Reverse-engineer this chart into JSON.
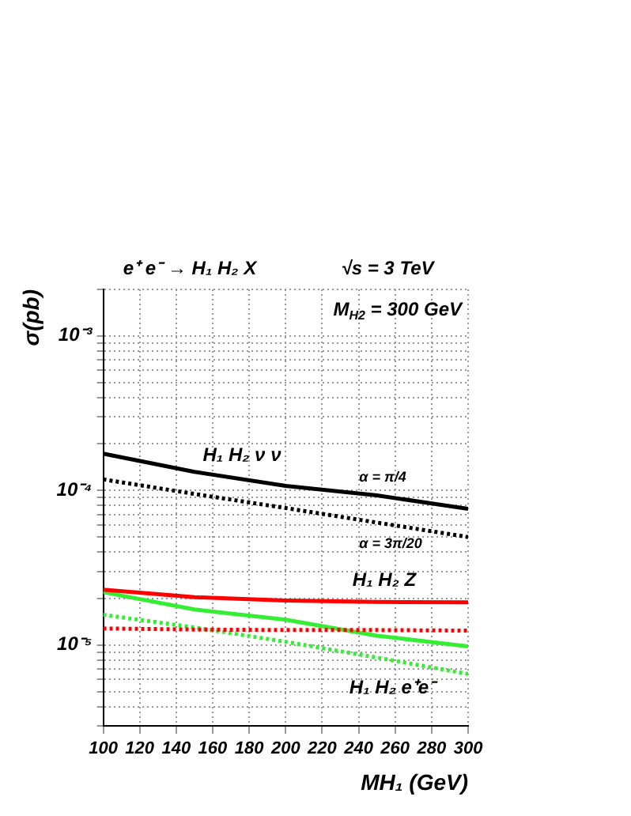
{
  "chart_data": {
    "type": "line",
    "title": "e⁺ e⁻ → H₁ H₂ X",
    "subtitle": "√s = 3 TeV",
    "xlabel": "MH₁ (GeV)",
    "ylabel": "σ(pb)",
    "x": [
      100,
      150,
      200,
      250,
      300
    ],
    "series": [
      {
        "color": "#000000",
        "line_style": "solid",
        "values": [
          0.000173,
          0.000132,
          0.000107,
          9.3e-05,
          7.6e-05
        ]
      },
      {
        "color": "#000000",
        "line_style": "dotted",
        "values": [
          0.000118,
          9.5e-05,
          7.7e-05,
          6.2e-05,
          5e-05
        ]
      },
      {
        "color": "#ff0000",
        "line_style": "solid",
        "values": [
          2.28e-05,
          2.04e-05,
          1.94e-05,
          1.9e-05,
          1.89e-05
        ]
      },
      {
        "color": "#ff0000",
        "line_style": "dotted",
        "values": [
          1.28e-05,
          1.26e-05,
          1.25e-05,
          1.25e-05,
          1.24e-05
        ]
      },
      {
        "color": "#33ee33",
        "line_style": "solid",
        "values": [
          2.2e-05,
          1.7e-05,
          1.46e-05,
          1.15e-05,
          9.8e-06
        ]
      },
      {
        "color": "#33ee33",
        "line_style": "dotted",
        "values": [
          1.57e-05,
          1.3e-05,
          1.05e-05,
          8.3e-06,
          6.5e-06
        ]
      }
    ],
    "xlim": [
      100,
      300
    ],
    "xticks": [
      100,
      120,
      140,
      160,
      180,
      200,
      220,
      240,
      260,
      280,
      300
    ],
    "ylim": [
      3e-06,
      0.002
    ],
    "log": "y",
    "yticks": [
      {
        "value": 3e-06,
        "label": null
      },
      {
        "value": 4e-06,
        "label": null
      },
      {
        "value": 5e-06,
        "label": null
      },
      {
        "value": 6e-06,
        "label": null
      },
      {
        "value": 7e-06,
        "label": null
      },
      {
        "value": 8e-06,
        "label": null
      },
      {
        "value": 9e-06,
        "label": null
      },
      {
        "value": 1e-05,
        "label": "10⁻⁵"
      },
      {
        "value": 2e-05,
        "label": null
      },
      {
        "value": 3e-05,
        "label": null
      },
      {
        "value": 4e-05,
        "label": null
      },
      {
        "value": 5e-05,
        "label": null
      },
      {
        "value": 6e-05,
        "label": null
      },
      {
        "value": 7e-05,
        "label": null
      },
      {
        "value": 8e-05,
        "label": null
      },
      {
        "value": 9e-05,
        "label": null
      },
      {
        "value": 0.0001,
        "label": "10⁻⁴"
      },
      {
        "value": 0.0002,
        "label": null
      },
      {
        "value": 0.0003,
        "label": null
      },
      {
        "value": 0.0004,
        "label": null
      },
      {
        "value": 0.0005,
        "label": null
      },
      {
        "value": 0.0006,
        "label": null
      },
      {
        "value": 0.0007,
        "label": null
      },
      {
        "value": 0.0008,
        "label": null
      },
      {
        "value": 0.0009,
        "label": null
      },
      {
        "value": 0.001,
        "label": "10⁻³"
      },
      {
        "value": 0.002,
        "label": null
      }
    ],
    "grid": true,
    "legend": false,
    "marker": "none",
    "annotations": [
      "M$_{H2}$ = 300 GeV",
      "H₁ H₂ ν ν",
      "α = π/4",
      "α = 3π/20",
      "H₁ H₂ Z",
      "H₁ H₂ e⁺e⁻"
    ]
  }
}
